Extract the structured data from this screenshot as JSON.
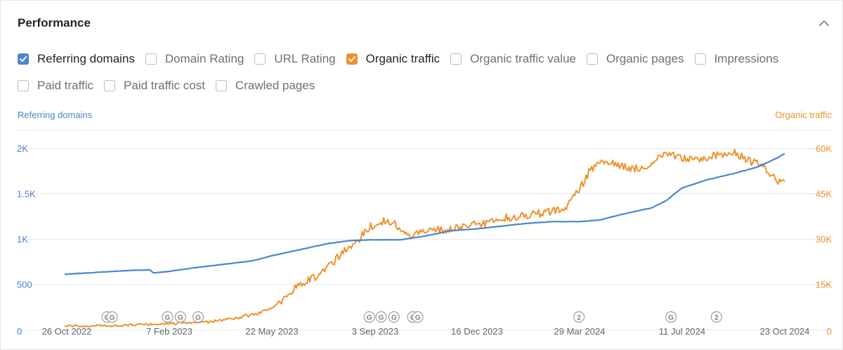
{
  "card": {
    "title": "Performance"
  },
  "colors": {
    "referring": "#4a86d1",
    "organic": "#f0912c",
    "grid": "#e6e8eb",
    "marker": "#9aa0a6"
  },
  "metrics": [
    {
      "label": "Referring domains",
      "checked": true,
      "color": "#4a86d1"
    },
    {
      "label": "Domain Rating",
      "checked": false
    },
    {
      "label": "URL Rating",
      "checked": false
    },
    {
      "label": "Organic traffic",
      "checked": true,
      "color": "#f0912c"
    },
    {
      "label": "Organic traffic value",
      "checked": false
    },
    {
      "label": "Organic pages",
      "checked": false
    },
    {
      "label": "Impressions",
      "checked": false
    },
    {
      "label": "Paid traffic",
      "checked": false
    },
    {
      "label": "Paid traffic cost",
      "checked": false
    },
    {
      "label": "Crawled pages",
      "checked": false
    }
  ],
  "chart_data": {
    "type": "line",
    "left_axis_title": "Referring domains",
    "right_axis_title": "Organic traffic",
    "left_ticks": [
      "0",
      "500",
      "1K",
      "1.5K",
      "2K"
    ],
    "right_ticks": [
      "0",
      "15K",
      "30K",
      "45K",
      "60K"
    ],
    "left_ylim": [
      0,
      2200
    ],
    "right_ylim": [
      0,
      66000
    ],
    "x_ticks": [
      "26 Oct 2022",
      "7 Feb 2023",
      "22 May 2023",
      "3 Sep 2023",
      "16 Dec 2023",
      "29 Mar 2024",
      "11 Jul 2024",
      "23 Oct 2024"
    ],
    "grid": true,
    "series": [
      {
        "name": "Referring domains",
        "axis": "left",
        "x": [
          "2022-10-26",
          "2022-11-26",
          "2022-12-26",
          "2023-01-20",
          "2023-01-24",
          "2023-02-07",
          "2023-03-05",
          "2023-04-05",
          "2023-05-05",
          "2023-05-22",
          "2023-06-20",
          "2023-07-20",
          "2023-08-10",
          "2023-09-03",
          "2023-10-01",
          "2023-10-25",
          "2023-11-20",
          "2023-12-16",
          "2024-01-10",
          "2024-02-05",
          "2024-03-01",
          "2024-03-29",
          "2024-04-20",
          "2024-05-15",
          "2024-06-10",
          "2024-06-25",
          "2024-07-11",
          "2024-08-05",
          "2024-09-01",
          "2024-09-25",
          "2024-10-15",
          "2024-10-23"
        ],
        "values": [
          610,
          630,
          650,
          660,
          625,
          640,
          680,
          720,
          760,
          810,
          880,
          950,
          980,
          990,
          990,
          1030,
          1090,
          1110,
          1140,
          1170,
          1190,
          1190,
          1210,
          1280,
          1340,
          1420,
          1560,
          1650,
          1720,
          1790,
          1890,
          1940
        ]
      },
      {
        "name": "Organic traffic",
        "axis": "right",
        "x": [
          "2022-10-26",
          "2022-12-15",
          "2023-02-07",
          "2023-03-20",
          "2023-04-20",
          "2023-05-22",
          "2023-06-05",
          "2023-06-20",
          "2023-07-05",
          "2023-07-20",
          "2023-08-05",
          "2023-08-20",
          "2023-08-30",
          "2023-09-15",
          "2023-09-25",
          "2023-10-05",
          "2023-10-20",
          "2023-11-05",
          "2023-11-20",
          "2023-12-10",
          "2023-12-25",
          "2024-01-10",
          "2024-01-25",
          "2024-02-10",
          "2024-03-01",
          "2024-03-15",
          "2024-03-29",
          "2024-04-08",
          "2024-04-22",
          "2024-05-05",
          "2024-05-20",
          "2024-06-05",
          "2024-06-20",
          "2024-07-11",
          "2024-07-25",
          "2024-08-05",
          "2024-08-20",
          "2024-09-01",
          "2024-09-15",
          "2024-09-25",
          "2024-10-05",
          "2024-10-15",
          "2024-10-23"
        ],
        "values": [
          1200,
          1300,
          2000,
          2500,
          4000,
          6500,
          10000,
          15000,
          17000,
          21000,
          26000,
          30000,
          34000,
          36000,
          35000,
          31000,
          32000,
          33000,
          33000,
          35000,
          35000,
          37000,
          37000,
          38000,
          39000,
          40000,
          46000,
          52000,
          56000,
          55000,
          53000,
          54000,
          58000,
          57000,
          56000,
          57000,
          58000,
          59000,
          56000,
          55000,
          53000,
          49000,
          49000
        ]
      }
    ],
    "annotations": [
      "G",
      "G",
      "G",
      "G",
      "G",
      "G",
      "G",
      "G",
      "G",
      "G",
      "2",
      "G",
      "2"
    ],
    "annotation_dates": [
      "2022-12-08",
      "2022-12-13",
      "2023-02-07",
      "2023-02-20",
      "2023-03-10",
      "2023-08-30",
      "2023-09-11",
      "2023-09-24",
      "2023-10-13",
      "2023-10-18",
      "2024-03-29",
      "2024-06-30",
      "2024-08-15"
    ]
  }
}
